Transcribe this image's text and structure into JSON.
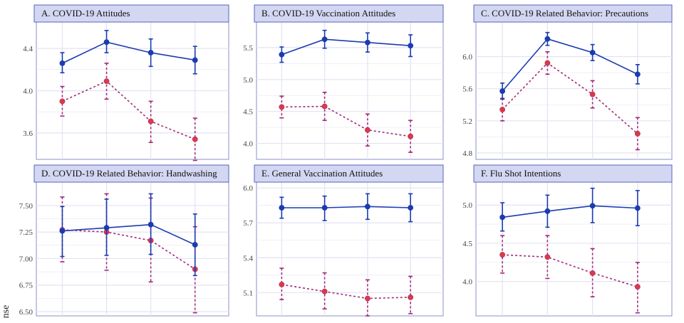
{
  "ylabel": "nse",
  "colors": {
    "blue_series": "#1b3bb0",
    "red_series": "#a4287a",
    "red_point": "#e0393e",
    "strip_fill": "#d4d7f2",
    "strip_border": "#5566bb",
    "grid": "#e3e3f3",
    "panel_border": "#8890c8"
  },
  "chart_data": [
    {
      "type": "line",
      "title": "A. COVID-19 Attitudes",
      "x": [
        1,
        2,
        3,
        4
      ],
      "ylim": [
        3.35,
        4.65
      ],
      "yticks": [
        "3.6",
        "4.0",
        "4.4"
      ],
      "grid": true,
      "series": [
        {
          "style": "solid",
          "values": [
            4.26,
            4.46,
            4.36,
            4.29
          ],
          "lower": [
            4.17,
            4.36,
            4.23,
            4.16
          ],
          "upper": [
            4.36,
            4.57,
            4.49,
            4.42
          ]
        },
        {
          "style": "dashed",
          "values": [
            3.9,
            4.09,
            3.71,
            3.54
          ],
          "lower": [
            3.76,
            3.92,
            3.51,
            3.34
          ],
          "upper": [
            4.04,
            4.26,
            3.9,
            3.74
          ]
        }
      ]
    },
    {
      "type": "line",
      "title": "B. COVID-19 Vaccination Attitudes",
      "x": [
        1,
        2,
        3,
        4
      ],
      "ylim": [
        3.75,
        5.9
      ],
      "yticks": [
        "4.0",
        "4.5",
        "5.0",
        "5.5"
      ],
      "grid": true,
      "series": [
        {
          "style": "solid",
          "values": [
            5.39,
            5.63,
            5.58,
            5.53
          ],
          "lower": [
            5.27,
            5.49,
            5.43,
            5.36
          ],
          "upper": [
            5.51,
            5.77,
            5.73,
            5.7
          ]
        },
        {
          "style": "dashed",
          "values": [
            4.57,
            4.58,
            4.21,
            4.11
          ],
          "lower": [
            4.4,
            4.36,
            3.96,
            3.86
          ],
          "upper": [
            4.74,
            4.8,
            4.46,
            4.36
          ]
        }
      ]
    },
    {
      "type": "line",
      "title": "C. COVID-19 Related Behavior: Precautions",
      "x": [
        1,
        2,
        3,
        4
      ],
      "ylim": [
        4.72,
        6.43
      ],
      "yticks": [
        "4.8",
        "5.2",
        "5.6",
        "6.0"
      ],
      "grid": true,
      "series": [
        {
          "style": "solid",
          "values": [
            5.57,
            6.22,
            6.05,
            5.78
          ],
          "lower": [
            5.47,
            6.14,
            5.95,
            5.66
          ],
          "upper": [
            5.67,
            6.3,
            6.15,
            5.9
          ]
        },
        {
          "style": "dashed",
          "values": [
            5.34,
            5.92,
            5.53,
            5.04
          ],
          "lower": [
            5.2,
            5.78,
            5.36,
            4.84
          ],
          "upper": [
            5.48,
            6.06,
            5.7,
            5.24
          ]
        }
      ]
    },
    {
      "type": "line",
      "title": "D. COVID-19 Related Behavior: Handwashing",
      "x": [
        1,
        2,
        3,
        4
      ],
      "ylim": [
        6.46,
        7.72
      ],
      "yticks": [
        "6.50",
        "6.75",
        "7.00",
        "7.25",
        "7.50"
      ],
      "grid": true,
      "series": [
        {
          "style": "solid",
          "values": [
            7.26,
            7.29,
            7.32,
            7.13
          ],
          "lower": [
            7.02,
            7.03,
            7.04,
            6.84
          ],
          "upper": [
            7.49,
            7.56,
            7.61,
            7.42
          ]
        },
        {
          "style": "dashed",
          "values": [
            7.27,
            7.25,
            7.17,
            6.9
          ],
          "lower": [
            6.97,
            6.89,
            6.78,
            6.49
          ],
          "upper": [
            7.58,
            7.61,
            7.57,
            7.3
          ]
        }
      ]
    },
    {
      "type": "line",
      "title": "E. General Vaccination Attitudes",
      "x": [
        1,
        2,
        3,
        4
      ],
      "ylim": [
        4.9,
        6.05
      ],
      "yticks": [
        "5.1",
        "5.4",
        "5.7",
        "6.0"
      ],
      "grid": true,
      "series": [
        {
          "style": "solid",
          "values": [
            5.83,
            5.83,
            5.84,
            5.83
          ],
          "lower": [
            5.74,
            5.72,
            5.73,
            5.71
          ],
          "upper": [
            5.92,
            5.93,
            5.95,
            5.95
          ]
        },
        {
          "style": "dashed",
          "values": [
            5.17,
            5.11,
            5.05,
            5.06
          ],
          "lower": [
            5.04,
            4.96,
            4.9,
            4.92
          ],
          "upper": [
            5.31,
            5.27,
            5.21,
            5.24
          ]
        }
      ]
    },
    {
      "type": "line",
      "title": "F. Flu Shot Intentions",
      "x": [
        1,
        2,
        3,
        4
      ],
      "ylim": [
        3.55,
        5.3
      ],
      "yticks": [
        "4.0",
        "4.5",
        "5.0"
      ],
      "grid": true,
      "series": [
        {
          "style": "solid",
          "values": [
            4.84,
            4.92,
            4.99,
            4.96
          ],
          "lower": [
            4.66,
            4.71,
            4.77,
            4.73
          ],
          "upper": [
            5.03,
            5.13,
            5.22,
            5.19
          ]
        },
        {
          "style": "dashed",
          "values": [
            4.35,
            4.32,
            4.11,
            3.93
          ],
          "lower": [
            4.11,
            4.04,
            3.8,
            3.59
          ],
          "upper": [
            4.6,
            4.6,
            4.43,
            4.25
          ]
        }
      ]
    }
  ]
}
